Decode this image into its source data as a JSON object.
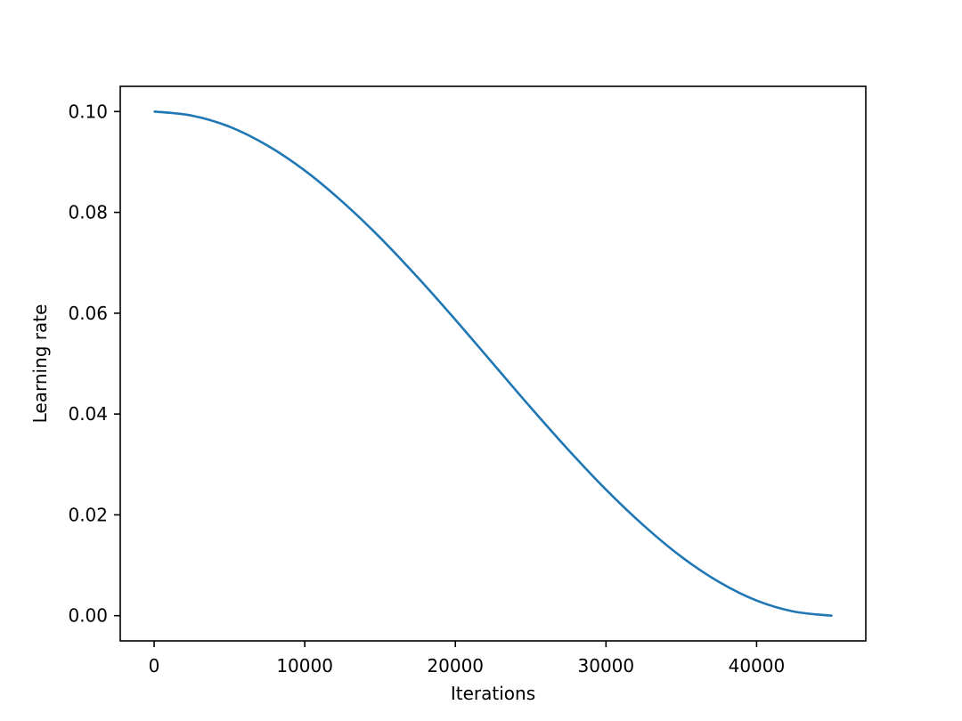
{
  "chart_data": {
    "type": "line",
    "title": "",
    "xlabel": "Iterations",
    "ylabel": "Learning rate",
    "xlim": [
      -2250,
      47250
    ],
    "ylim": [
      -0.005,
      0.105
    ],
    "xticks": [
      0,
      10000,
      20000,
      30000,
      40000
    ],
    "xtick_labels": [
      "0",
      "10000",
      "20000",
      "30000",
      "40000"
    ],
    "yticks": [
      0.0,
      0.02,
      0.04,
      0.06,
      0.08,
      0.1
    ],
    "ytick_labels": [
      "0.00",
      "0.02",
      "0.04",
      "0.06",
      "0.08",
      "0.10"
    ],
    "grid": false,
    "legend": "none",
    "series": [
      {
        "color": "#1f77b4",
        "x": [
          0,
          2500,
          5000,
          7500,
          10000,
          12500,
          15000,
          17500,
          20000,
          22500,
          25000,
          27500,
          30000,
          32500,
          35000,
          37500,
          40000,
          42500,
          45000
        ],
        "y": [
          0.1,
          0.0992,
          0.097,
          0.0933,
          0.0883,
          0.0821,
          0.075,
          0.0671,
          0.0587,
          0.05,
          0.0413,
          0.0329,
          0.025,
          0.0179,
          0.0117,
          0.0067,
          0.003,
          0.0008,
          0.0
        ]
      }
    ]
  }
}
